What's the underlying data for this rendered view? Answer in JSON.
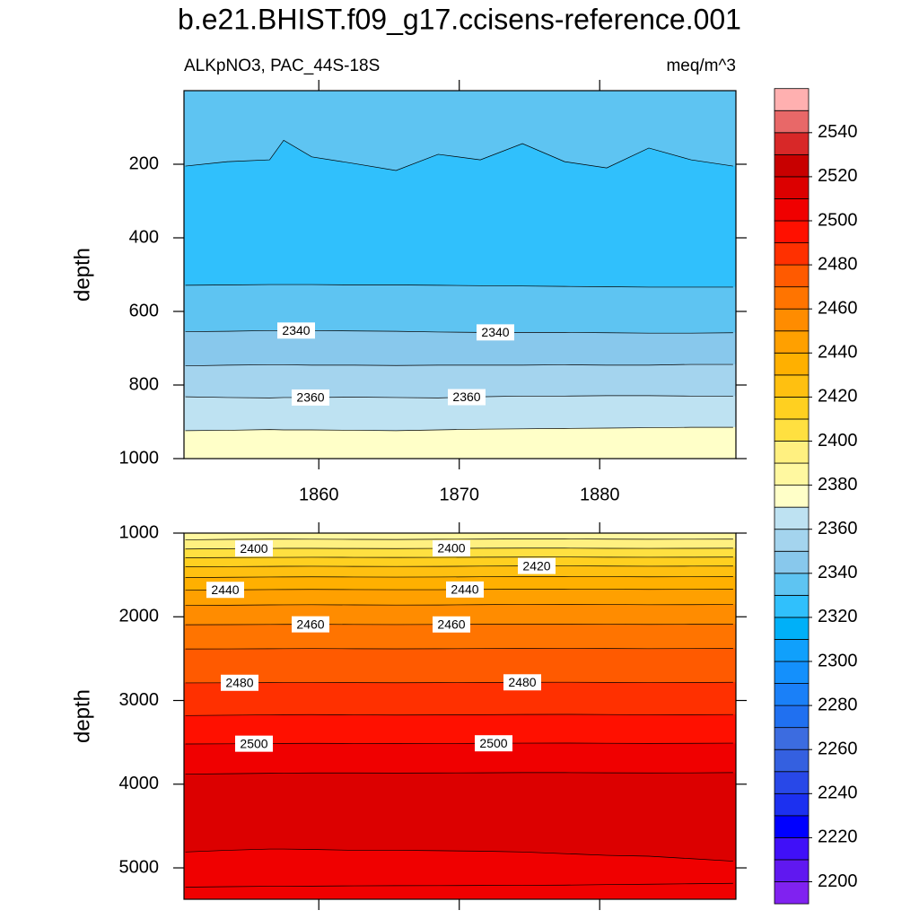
{
  "chart_data": {
    "type": "contour",
    "title": "b.e21.BHIST.f09_g17.ccisens-reference.001",
    "subtitle_left": "ALKpNO3, PAC_44S-18S",
    "subtitle_right": "meq/m^3",
    "colorbar": {
      "levels": [
        2200,
        2210,
        2220,
        2230,
        2240,
        2250,
        2260,
        2270,
        2280,
        2290,
        2300,
        2310,
        2320,
        2330,
        2340,
        2350,
        2360,
        2370,
        2380,
        2390,
        2400,
        2410,
        2420,
        2430,
        2440,
        2450,
        2460,
        2470,
        2480,
        2490,
        2500,
        2510,
        2520,
        2530,
        2540,
        2550
      ],
      "ticks": [
        2200,
        2220,
        2240,
        2260,
        2280,
        2300,
        2320,
        2340,
        2360,
        2380,
        2400,
        2420,
        2440,
        2460,
        2480,
        2500,
        2520,
        2540
      ],
      "colors": [
        "#8022f0",
        "#6018f0",
        "#4010f8",
        "#0000ff",
        "#1c30f0",
        "#2848e8",
        "#3460e0",
        "#3c6ce0",
        "#2070f0",
        "#1a80f8",
        "#1490fc",
        "#10a0fc",
        "#00b0f8",
        "#30c0fc",
        "#5ec4f2",
        "#88c8ec",
        "#a4d4ee",
        "#bee2f2",
        "#ffffc8",
        "#fff8a0",
        "#fff080",
        "#ffe040",
        "#ffd020",
        "#ffc010",
        "#ffb000",
        "#ffa000",
        "#ff8c00",
        "#ff7400",
        "#ff5a00",
        "#ff3000",
        "#ff1000",
        "#f00000",
        "#dc0000",
        "#c80000",
        "#d82828",
        "#e86868",
        "#ffb0b0"
      ]
    },
    "panels": [
      {
        "ylabel": "depth",
        "xlim": [
          1850.4,
          1889.7
        ],
        "xticks": [
          1860,
          1870,
          1880
        ],
        "show_xticklabels": true,
        "ylim": [
          0,
          1000
        ],
        "yticks": [
          200,
          400,
          600,
          800,
          1000
        ],
        "x": [
          1850.5,
          1853.5,
          1856.5,
          1857.5,
          1859.5,
          1862.5,
          1865.5,
          1868.5,
          1871.5,
          1874.5,
          1877.5,
          1880.5,
          1883.5,
          1886.5,
          1889.5
        ],
        "contours": [
          {
            "level": 2330,
            "depths": [
              205,
              193,
              188,
              135,
              180,
              198,
              217,
              173,
              188,
              144,
              193,
              210,
              156,
              188,
              205
            ]
          },
          {
            "level": 2330,
            "depths": [
              529,
              528,
              527,
              527,
              527,
              528,
              528,
              529,
              530,
              531,
              532,
              533,
              534,
              534,
              534
            ]
          },
          {
            "level": 2340,
            "depths": [
              655,
              654,
              652,
              652,
              652,
              653,
              654,
              656,
              657,
              657,
              657,
              658,
              659,
              659,
              658
            ]
          },
          {
            "level": 2350,
            "depths": [
              748,
              746,
              745,
              745,
              746,
              746,
              747,
              746,
              746,
              746,
              745,
              746,
              746,
              744,
              744
            ]
          },
          {
            "level": 2360,
            "depths": [
              832,
              834,
              835,
              834,
              834,
              833,
              834,
              835,
              832,
              830,
              830,
              829,
              829,
              830,
              831
            ]
          },
          {
            "level": 2370,
            "depths": [
              924,
              923,
              921,
              922,
              922,
              923,
              924,
              922,
              920,
              919,
              918,
              917,
              916,
              915,
              915
            ]
          }
        ],
        "regions": [
          2330,
          2320,
          2330,
          2340,
          2350,
          2360,
          2370
        ]
      },
      {
        "ylabel": "depth",
        "xlim": [
          1850.4,
          1889.7
        ],
        "xticks": [
          1860,
          1870,
          1880
        ],
        "show_xticklabels": false,
        "ylim": [
          1000,
          5375
        ],
        "yticks": [
          1000,
          2000,
          3000,
          4000,
          5000
        ],
        "x": [
          1850.5,
          1853.5,
          1856.5,
          1857.5,
          1859.5,
          1862.5,
          1865.5,
          1868.5,
          1871.5,
          1874.5,
          1877.5,
          1880.5,
          1883.5,
          1886.5,
          1889.5
        ],
        "contours": [
          {
            "level": 2390,
            "depths": [
              1080,
              1075,
              1072,
              1072,
              1073,
              1075,
              1076,
              1074,
              1072,
              1070,
              1070,
              1072,
              1074,
              1073,
              1072
            ]
          },
          {
            "level": 2400,
            "depths": [
              1190,
              1186,
              1183,
              1182,
              1182,
              1184,
              1185,
              1183,
              1181,
              1180,
              1180,
              1182,
              1183,
              1182,
              1181
            ]
          },
          {
            "level": 2410,
            "depths": [
              1295,
              1292,
              1290,
              1290,
              1289,
              1290,
              1291,
              1290,
              1288,
              1287,
              1286,
              1288,
              1289,
              1288,
              1287
            ]
          },
          {
            "level": 2420,
            "depths": [
              1402,
              1400,
              1398,
              1397,
              1396,
              1398,
              1399,
              1398,
              1395,
              1393,
              1392,
              1394,
              1396,
              1395,
              1394
            ]
          },
          {
            "level": 2430,
            "depths": [
              1532,
              1528,
              1525,
              1524,
              1523,
              1525,
              1526,
              1525,
              1522,
              1520,
              1519,
              1521,
              1523,
              1522,
              1520
            ]
          },
          {
            "level": 2440,
            "depths": [
              1680,
              1678,
              1675,
              1674,
              1673,
              1675,
              1676,
              1676,
              1673,
              1670,
              1669,
              1671,
              1673,
              1672,
              1670
            ]
          },
          {
            "level": 2450,
            "depths": [
              1865,
              1862,
              1858,
              1857,
              1856,
              1858,
              1860,
              1859,
              1855,
              1852,
              1851,
              1853,
              1856,
              1855,
              1853
            ]
          },
          {
            "level": 2460,
            "depths": [
              2095,
              2094,
              2092,
              2091,
              2090,
              2092,
              2093,
              2092,
              2090,
              2088,
              2087,
              2089,
              2091,
              2090,
              2088
            ]
          },
          {
            "level": 2470,
            "depths": [
              2385,
              2384,
              2382,
              2381,
              2380,
              2382,
              2383,
              2382,
              2380,
              2378,
              2377,
              2379,
              2381,
              2380,
              2378
            ]
          },
          {
            "level": 2480,
            "depths": [
              2790,
              2789,
              2787,
              2786,
              2786,
              2787,
              2788,
              2787,
              2785,
              2783,
              2782,
              2784,
              2786,
              2785,
              2783
            ]
          },
          {
            "level": 2490,
            "depths": [
              3180,
              3176,
              3172,
              3170,
              3169,
              3172,
              3174,
              3173,
              3170,
              3167,
              3166,
              3168,
              3171,
              3170,
              3168
            ]
          },
          {
            "level": 2500,
            "depths": [
              3520,
              3518,
              3515,
              3513,
              3512,
              3514,
              3516,
              3515,
              3512,
              3510,
              3509,
              3511,
              3513,
              3512,
              3510
            ]
          },
          {
            "level": 2510,
            "depths": [
              3880,
              3875,
              3870,
              3868,
              3866,
              3866,
              3867,
              3866,
              3864,
              3862,
              3862,
              3864,
              3866,
              3865,
              3862
            ]
          },
          {
            "level": 2510,
            "depths": [
              4810,
              4790,
              4775,
              4775,
              4780,
              4790,
              4790,
              4795,
              4800,
              4810,
              4830,
              4850,
              4860,
              4890,
              4920
            ]
          },
          {
            "level": 2500,
            "depths": [
              5230,
              5225,
              5220,
              5220,
              5218,
              5215,
              5213,
              5212,
              5210,
              5208,
              5206,
              5200,
              5195,
              5190,
              5185
            ]
          }
        ],
        "regions": [
          2380,
          2390,
          2400,
          2410,
          2420,
          2430,
          2440,
          2450,
          2460,
          2470,
          2480,
          2490,
          2500,
          2510,
          2500,
          2500
        ]
      }
    ]
  }
}
